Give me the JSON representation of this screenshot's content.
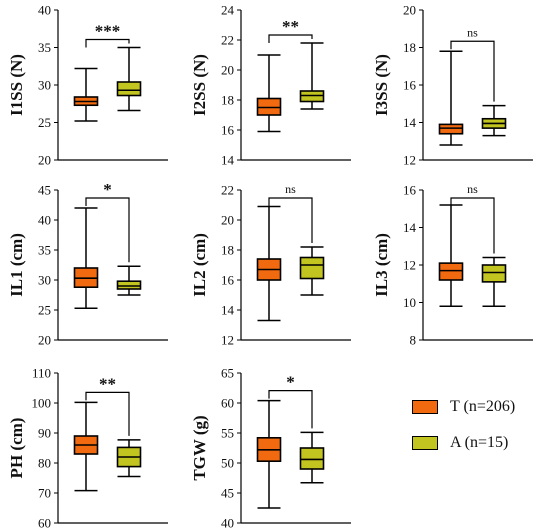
{
  "colors": {
    "T": "#F26A10",
    "A": "#C2C420",
    "stroke": "#000000"
  },
  "legend": [
    {
      "key": "T",
      "label": "T (n=206)"
    },
    {
      "key": "A",
      "label": "A (n=15)"
    }
  ],
  "chart_data": [
    {
      "type": "box",
      "ylabel": "I1SS (N)",
      "ylim": [
        20,
        40
      ],
      "yticks": [
        20,
        25,
        30,
        35,
        40
      ],
      "significance": "***",
      "series": [
        {
          "key": "T",
          "min": 25.2,
          "q1": 27.3,
          "median": 27.8,
          "q3": 28.4,
          "max": 32.2
        },
        {
          "key": "A",
          "min": 26.6,
          "q1": 28.6,
          "median": 29.3,
          "q3": 30.4,
          "max": 35.0
        }
      ]
    },
    {
      "type": "box",
      "ylabel": "I2SS (N)",
      "ylim": [
        14,
        24
      ],
      "yticks": [
        14,
        16,
        18,
        20,
        22,
        24
      ],
      "significance": "**",
      "series": [
        {
          "key": "T",
          "min": 15.9,
          "q1": 17.0,
          "median": 17.5,
          "q3": 18.1,
          "max": 21.0
        },
        {
          "key": "A",
          "min": 17.4,
          "q1": 17.9,
          "median": 18.3,
          "q3": 18.6,
          "max": 21.8
        }
      ]
    },
    {
      "type": "box",
      "ylabel": "I3SS (N)",
      "ylim": [
        12,
        20
      ],
      "yticks": [
        12,
        14,
        16,
        18,
        20
      ],
      "significance": "ns",
      "series": [
        {
          "key": "T",
          "min": 12.8,
          "q1": 13.4,
          "median": 13.7,
          "q3": 13.9,
          "max": 17.8
        },
        {
          "key": "A",
          "min": 13.3,
          "q1": 13.7,
          "median": 13.95,
          "q3": 14.2,
          "max": 14.9
        }
      ]
    },
    {
      "type": "box",
      "ylabel": "IL1 (cm)",
      "ylim": [
        20,
        45
      ],
      "yticks": [
        20,
        25,
        30,
        35,
        40,
        45
      ],
      "significance": "*",
      "series": [
        {
          "key": "T",
          "min": 25.3,
          "q1": 28.8,
          "median": 30.3,
          "q3": 32.0,
          "max": 42.0
        },
        {
          "key": "A",
          "min": 27.5,
          "q1": 28.5,
          "median": 29.0,
          "q3": 29.8,
          "max": 32.3
        }
      ]
    },
    {
      "type": "box",
      "ylabel": "IL2 (cm)",
      "ylim": [
        12,
        22
      ],
      "yticks": [
        12,
        14,
        16,
        18,
        20,
        22
      ],
      "significance": "ns",
      "series": [
        {
          "key": "T",
          "min": 13.3,
          "q1": 16.0,
          "median": 16.7,
          "q3": 17.4,
          "max": 20.9
        },
        {
          "key": "A",
          "min": 15.0,
          "q1": 16.1,
          "median": 17.0,
          "q3": 17.5,
          "max": 18.2
        }
      ]
    },
    {
      "type": "box",
      "ylabel": "IL3 (cm)",
      "ylim": [
        8,
        16
      ],
      "yticks": [
        8,
        10,
        12,
        14,
        16
      ],
      "significance": "ns",
      "series": [
        {
          "key": "T",
          "min": 9.8,
          "q1": 11.2,
          "median": 11.7,
          "q3": 12.1,
          "max": 15.2
        },
        {
          "key": "A",
          "min": 9.8,
          "q1": 11.1,
          "median": 11.6,
          "q3": 12.0,
          "max": 12.4
        }
      ]
    },
    {
      "type": "box",
      "ylabel": "PH (cm)",
      "ylim": [
        60,
        110
      ],
      "yticks": [
        60,
        70,
        80,
        90,
        100,
        110
      ],
      "significance": "**",
      "series": [
        {
          "key": "T",
          "min": 70.8,
          "q1": 83.0,
          "median": 86.0,
          "q3": 89.0,
          "max": 100.2
        },
        {
          "key": "A",
          "min": 75.5,
          "q1": 78.8,
          "median": 82.0,
          "q3": 85.2,
          "max": 87.7
        }
      ]
    },
    {
      "type": "box",
      "ylabel": "TGW (g)",
      "ylim": [
        40,
        65
      ],
      "yticks": [
        40,
        45,
        50,
        55,
        60,
        65
      ],
      "significance": "*",
      "series": [
        {
          "key": "T",
          "min": 42.5,
          "q1": 50.3,
          "median": 52.2,
          "q3": 54.2,
          "max": 60.4
        },
        {
          "key": "A",
          "min": 46.7,
          "q1": 49.0,
          "median": 50.6,
          "q3": 52.5,
          "max": 55.1
        }
      ]
    }
  ]
}
